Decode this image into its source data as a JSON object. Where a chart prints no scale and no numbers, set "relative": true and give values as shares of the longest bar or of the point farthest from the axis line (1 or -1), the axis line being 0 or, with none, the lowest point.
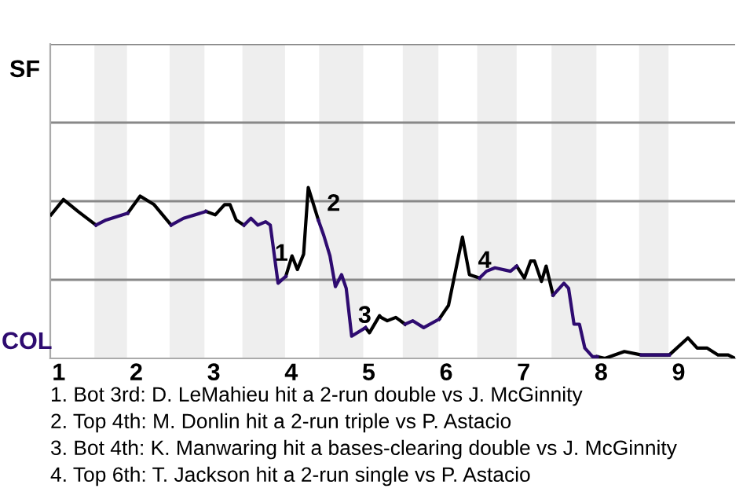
{
  "chart_data": {
    "type": "line",
    "relative": true,
    "ref_lines": [
      {
        "axis": "y",
        "value": 0.46,
        "color": "#888888"
      },
      {
        "axis": "y",
        "value": 0.92,
        "color": "#888888"
      },
      {
        "axis": "y",
        "value": 1.38,
        "color": "#888888"
      },
      {
        "axis": "y",
        "value": 1.84,
        "color": "#888888"
      }
    ],
    "marker": "none",
    "line_style": "solid",
    "x": [
      0.9,
      1.06,
      1.25,
      1.48,
      1.61,
      1.89,
      2.05,
      2.23,
      2.45,
      2.61,
      2.9,
      3.02,
      3.14,
      3.21,
      3.29,
      3.39,
      3.48,
      3.57,
      3.67,
      3.73,
      3.83,
      3.93,
      4.01,
      4.08,
      4.16,
      4.22,
      4.35,
      4.42,
      4.5,
      4.57,
      4.65,
      4.71,
      4.78,
      4.96,
      5.01,
      5.14,
      5.16,
      5.24,
      5.35,
      5.47,
      5.57,
      5.71,
      5.91,
      6.03,
      6.21,
      6.3,
      6.43,
      6.52,
      6.63,
      6.83,
      6.91,
      7.01,
      7.09,
      7.14,
      7.23,
      7.29,
      7.38,
      7.52,
      7.58,
      7.65,
      7.72,
      7.79,
      7.89,
      7.95,
      8.05,
      8.3,
      8.52,
      8.88,
      9.12,
      9.24,
      9.37,
      9.51,
      9.64,
      9.73
    ],
    "xlim": [
      0.89,
      9.73
    ],
    "xticks": [
      1,
      2,
      3,
      4,
      5,
      6,
      7,
      8,
      9
    ],
    "series": [
      {
        "color": "#000000",
        "values": [
          0.84,
          0.93,
          0.86,
          0.78,
          null,
          0.85,
          0.95,
          0.9,
          0.78,
          null,
          0.86,
          0.84,
          0.9,
          0.9,
          0.81,
          0.78,
          null,
          null,
          null,
          null,
          null,
          0.48,
          0.6,
          0.52,
          0.61,
          1.0,
          0.81,
          null,
          null,
          null,
          null,
          null,
          null,
          0.18,
          0.15,
          0.25,
          0.24,
          0.22,
          0.24,
          0.2,
          null,
          null,
          0.23,
          0.31,
          0.71,
          0.49,
          0.47,
          null,
          null,
          null,
          0.54,
          0.47,
          0.57,
          0.57,
          0.45,
          0.54,
          0.37,
          null,
          null,
          null,
          null,
          null,
          null,
          0.01,
          0.0,
          0.04,
          0.02,
          0.02,
          0.12,
          0.06,
          0.06,
          0.02,
          0.02,
          0.0
        ]
      },
      {
        "color": "#2e0b70",
        "values": [
          null,
          null,
          null,
          0.78,
          0.81,
          0.85,
          null,
          null,
          0.78,
          0.82,
          0.86,
          null,
          null,
          null,
          null,
          0.78,
          0.82,
          0.78,
          0.8,
          0.78,
          0.44,
          0.48,
          null,
          null,
          null,
          null,
          0.81,
          0.72,
          0.6,
          0.42,
          0.49,
          0.41,
          0.13,
          0.18,
          null,
          null,
          null,
          null,
          null,
          0.2,
          0.22,
          0.18,
          0.23,
          null,
          null,
          null,
          0.47,
          0.51,
          0.53,
          0.51,
          0.54,
          null,
          null,
          null,
          null,
          null,
          0.37,
          0.44,
          0.41,
          0.2,
          0.2,
          0.06,
          0.01,
          0.01,
          null,
          null,
          0.02,
          0.02,
          null,
          null,
          null,
          null,
          null,
          null
        ]
      }
    ],
    "bands": [
      {
        "axis": "x",
        "from": 1.46,
        "to": 1.88,
        "color": "#eeeeee"
      },
      {
        "axis": "x",
        "from": 2.43,
        "to": 2.88,
        "color": "#eeeeee"
      },
      {
        "axis": "x",
        "from": 3.37,
        "to": 3.92,
        "color": "#eeeeee"
      },
      {
        "axis": "x",
        "from": 4.36,
        "to": 4.93,
        "color": "#eeeeee"
      },
      {
        "axis": "x",
        "from": 5.44,
        "to": 5.9,
        "color": "#eeeeee"
      },
      {
        "axis": "x",
        "from": 6.4,
        "to": 6.91,
        "color": "#eeeeee"
      },
      {
        "axis": "x",
        "from": 7.36,
        "to": 7.94,
        "color": "#eeeeee"
      },
      {
        "axis": "x",
        "from": 8.49,
        "to": 8.87,
        "color": "#eeeeee"
      }
    ],
    "annotations": [
      "SF",
      "COL",
      {
        "text": "1",
        "x": 3.93,
        "y": 0.48
      },
      {
        "text": "2",
        "x": 4.35,
        "y": 0.81
      },
      {
        "text": "3",
        "x": 4.78,
        "y": 0.13
      },
      {
        "text": "4",
        "x": 6.3,
        "y": 0.49
      },
      "1. Bot 3rd: D. LeMahieu hit a 2-run double vs J. McGinnity",
      "2. Top 4th: M. Donlin hit a 2-run triple vs P. Astacio",
      "3. Bot 4th: K. Manwaring hit a bases-clearing double vs J. McGinnity",
      "4. Top 6th: T. Jackson hit a 2-run single vs P. Astacio"
    ]
  }
}
